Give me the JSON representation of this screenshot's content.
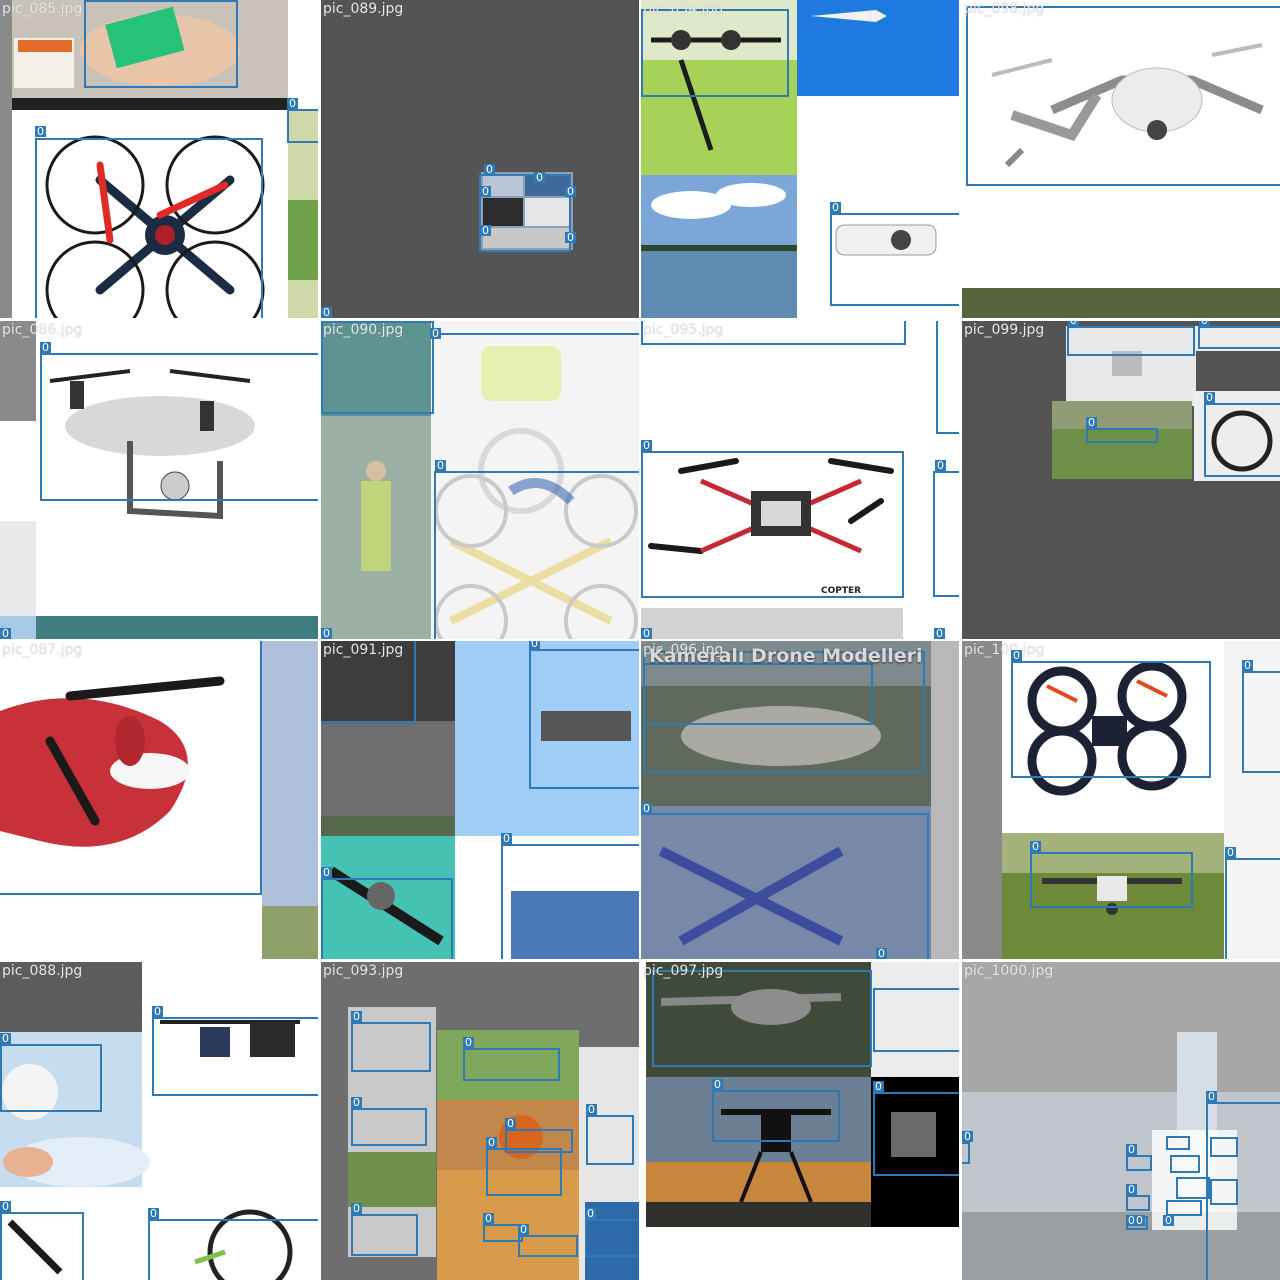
{
  "mosaic": {
    "box_label": "0",
    "box_color": "#2f79b5",
    "tiles": [
      {
        "file": "pic_085.jpg",
        "scene": "hand-drone-video"
      },
      {
        "file": "pic_089.jpg",
        "scene": "gray-mini-mosaic"
      },
      {
        "file": "pic_094.jpg",
        "scene": "sky-field-lake"
      },
      {
        "file": "pic_098.jpg",
        "scene": "white-foldable-drone"
      },
      {
        "file": "pic_086.jpg",
        "scene": "white-quad-camera"
      },
      {
        "file": "pic_090.jpg",
        "scene": "faded-worker-overlay"
      },
      {
        "file": "pic_095.jpg",
        "scene": "red-racing-frame",
        "logo": "COPTER"
      },
      {
        "file": "pic_099.jpg",
        "scene": "gray-small-drones"
      },
      {
        "file": "pic_087.jpg",
        "scene": "red-drone-closeup"
      },
      {
        "file": "pic_091.jpg",
        "scene": "sky-teal-blue"
      },
      {
        "file": "pic_096.jpg",
        "scene": "overlay-banner",
        "banner": "Kameralı Drone Modelleri"
      },
      {
        "file": "pic_100.jpg",
        "scene": "toy-and-inspire"
      },
      {
        "file": "pic_088.jpg",
        "scene": "hand-selfie-drone"
      },
      {
        "file": "pic_093.jpg",
        "scene": "mini-collage"
      },
      {
        "file": "pic_097.jpg",
        "scene": "sunset-hexacopter"
      },
      {
        "file": "pic_1000.jpg",
        "scene": "foggy-sea-collage"
      }
    ]
  }
}
